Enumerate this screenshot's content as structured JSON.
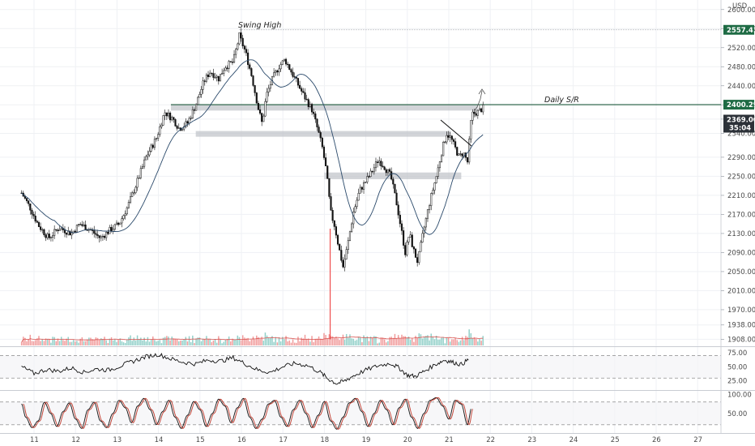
{
  "chart_data": {
    "type": "candlestick",
    "currency": "USD",
    "x_ticks": [
      "11",
      "12",
      "13",
      "14",
      "15",
      "16",
      "17",
      "18",
      "19",
      "20",
      "21",
      "22",
      "23",
      "24",
      "25",
      "26",
      "27"
    ],
    "y_ticks": [
      "2600.00",
      "2560.00",
      "2520.00",
      "2480.00",
      "2440.00",
      "2400.00",
      "2370.00",
      "2340.00",
      "2290.00",
      "2250.00",
      "2210.00",
      "2170.00",
      "2130.00",
      "2090.00",
      "2050.00",
      "2010.00",
      "1970.00",
      "1938.00",
      "1908.00"
    ],
    "y_range": [
      1895,
      2620
    ],
    "annotations": {
      "swing_high": "Swing High",
      "daily_sr": "Daily S/R"
    },
    "price_badges": {
      "swing_high_level": "2557.41",
      "daily_sr_level": "2400.29",
      "last_price": "2369.00",
      "countdown": "35:04"
    },
    "levels": {
      "swing_high": 2557.41,
      "daily_sr": 2400.29,
      "last_price": 2369.0
    },
    "zones": [
      {
        "x_from": 14.3,
        "x_to": 21.7,
        "y_low": 2388,
        "y_high": 2400
      },
      {
        "x_from": 14.9,
        "x_to": 21.05,
        "y_low": 2333,
        "y_high": 2345
      },
      {
        "x_from": 18.0,
        "x_to": 21.3,
        "y_low": 2244,
        "y_high": 2258
      }
    ],
    "price_path": [
      [
        10.7,
        2215
      ],
      [
        10.9,
        2185
      ],
      [
        11.1,
        2148
      ],
      [
        11.35,
        2120
      ],
      [
        11.6,
        2142
      ],
      [
        11.9,
        2130
      ],
      [
        12.1,
        2150
      ],
      [
        12.35,
        2138
      ],
      [
        12.6,
        2120
      ],
      [
        12.8,
        2135
      ],
      [
        13.05,
        2150
      ],
      [
        13.25,
        2185
      ],
      [
        13.45,
        2230
      ],
      [
        13.7,
        2290
      ],
      [
        13.95,
        2330
      ],
      [
        14.15,
        2385
      ],
      [
        14.35,
        2370
      ],
      [
        14.5,
        2350
      ],
      [
        14.7,
        2362
      ],
      [
        14.9,
        2400
      ],
      [
        15.1,
        2450
      ],
      [
        15.25,
        2470
      ],
      [
        15.45,
        2455
      ],
      [
        15.6,
        2480
      ],
      [
        15.8,
        2490
      ],
      [
        15.95,
        2545
      ],
      [
        16.1,
        2510
      ],
      [
        16.25,
        2460
      ],
      [
        16.4,
        2395
      ],
      [
        16.5,
        2360
      ],
      [
        16.6,
        2420
      ],
      [
        16.75,
        2455
      ],
      [
        16.9,
        2480
      ],
      [
        17.05,
        2495
      ],
      [
        17.2,
        2470
      ],
      [
        17.35,
        2445
      ],
      [
        17.5,
        2420
      ],
      [
        17.7,
        2390
      ],
      [
        17.85,
        2345
      ],
      [
        17.95,
        2310
      ],
      [
        18.05,
        2260
      ],
      [
        18.15,
        2175
      ],
      [
        18.25,
        2145
      ],
      [
        18.35,
        2100
      ],
      [
        18.45,
        2060
      ],
      [
        18.55,
        2100
      ],
      [
        18.7,
        2175
      ],
      [
        18.85,
        2220
      ],
      [
        19.0,
        2240
      ],
      [
        19.15,
        2260
      ],
      [
        19.3,
        2285
      ],
      [
        19.45,
        2270
      ],
      [
        19.6,
        2250
      ],
      [
        19.75,
        2190
      ],
      [
        19.85,
        2140
      ],
      [
        19.95,
        2090
      ],
      [
        20.05,
        2130
      ],
      [
        20.15,
        2095
      ],
      [
        20.25,
        2070
      ],
      [
        20.4,
        2140
      ],
      [
        20.55,
        2200
      ],
      [
        20.7,
        2250
      ],
      [
        20.85,
        2310
      ],
      [
        20.95,
        2340
      ],
      [
        21.05,
        2330
      ],
      [
        21.15,
        2310
      ],
      [
        21.25,
        2290
      ],
      [
        21.35,
        2300
      ],
      [
        21.45,
        2280
      ],
      [
        21.55,
        2380
      ],
      [
        21.7,
        2385
      ],
      [
        21.85,
        2395
      ]
    ],
    "spike_wick": {
      "x": 18.14,
      "low": 1908,
      "high": 2140
    },
    "rsi_panel": {
      "y_ticks": [
        "75.00",
        "50.00",
        "25.00"
      ],
      "y_range": [
        10,
        85
      ],
      "upper_band": 70,
      "lower_band": 30,
      "values": [
        [
          10.7,
          50
        ],
        [
          11.0,
          38
        ],
        [
          11.3,
          45
        ],
        [
          11.6,
          42
        ],
        [
          11.9,
          48
        ],
        [
          12.2,
          40
        ],
        [
          12.5,
          46
        ],
        [
          12.8,
          44
        ],
        [
          13.1,
          52
        ],
        [
          13.4,
          60
        ],
        [
          13.7,
          68
        ],
        [
          14.0,
          72
        ],
        [
          14.3,
          64
        ],
        [
          14.6,
          58
        ],
        [
          14.9,
          55
        ],
        [
          15.2,
          62
        ],
        [
          15.5,
          60
        ],
        [
          15.8,
          66
        ],
        [
          16.1,
          55
        ],
        [
          16.4,
          44
        ],
        [
          16.7,
          40
        ],
        [
          17.0,
          50
        ],
        [
          17.3,
          56
        ],
        [
          17.6,
          52
        ],
        [
          17.9,
          40
        ],
        [
          18.1,
          28
        ],
        [
          18.3,
          20
        ],
        [
          18.5,
          25
        ],
        [
          18.7,
          34
        ],
        [
          19.0,
          44
        ],
        [
          19.3,
          52
        ],
        [
          19.6,
          56
        ],
        [
          19.8,
          48
        ],
        [
          20.0,
          35
        ],
        [
          20.2,
          33
        ],
        [
          20.4,
          42
        ],
        [
          20.7,
          55
        ],
        [
          20.9,
          62
        ],
        [
          21.1,
          58
        ],
        [
          21.3,
          54
        ],
        [
          21.5,
          64
        ]
      ]
    },
    "stoch_panel": {
      "y_ticks": [
        "100.00",
        "50.00"
      ],
      "y_range": [
        0,
        110
      ],
      "upper_band": 80,
      "lower_band": 20,
      "values": [
        [
          10.7,
          75
        ],
        [
          10.8,
          40
        ],
        [
          10.95,
          12
        ],
        [
          11.1,
          30
        ],
        [
          11.25,
          80
        ],
        [
          11.4,
          50
        ],
        [
          11.55,
          15
        ],
        [
          11.7,
          55
        ],
        [
          11.85,
          78
        ],
        [
          12.0,
          35
        ],
        [
          12.15,
          10
        ],
        [
          12.3,
          60
        ],
        [
          12.45,
          80
        ],
        [
          12.6,
          30
        ],
        [
          12.75,
          12
        ],
        [
          12.9,
          50
        ],
        [
          13.05,
          85
        ],
        [
          13.2,
          65
        ],
        [
          13.35,
          25
        ],
        [
          13.5,
          70
        ],
        [
          13.65,
          90
        ],
        [
          13.8,
          60
        ],
        [
          13.95,
          20
        ],
        [
          14.1,
          55
        ],
        [
          14.25,
          85
        ],
        [
          14.4,
          40
        ],
        [
          14.55,
          10
        ],
        [
          14.7,
          45
        ],
        [
          14.85,
          82
        ],
        [
          15.0,
          60
        ],
        [
          15.15,
          15
        ],
        [
          15.3,
          50
        ],
        [
          15.45,
          88
        ],
        [
          15.6,
          70
        ],
        [
          15.75,
          25
        ],
        [
          15.9,
          65
        ],
        [
          16.05,
          90
        ],
        [
          16.2,
          40
        ],
        [
          16.35,
          10
        ],
        [
          16.5,
          35
        ],
        [
          16.65,
          75
        ],
        [
          16.8,
          85
        ],
        [
          16.95,
          40
        ],
        [
          17.1,
          15
        ],
        [
          17.25,
          60
        ],
        [
          17.4,
          85
        ],
        [
          17.55,
          50
        ],
        [
          17.7,
          12
        ],
        [
          17.85,
          45
        ],
        [
          18.0,
          82
        ],
        [
          18.15,
          30
        ],
        [
          18.3,
          8
        ],
        [
          18.45,
          40
        ],
        [
          18.6,
          78
        ],
        [
          18.75,
          90
        ],
        [
          18.9,
          55
        ],
        [
          19.05,
          15
        ],
        [
          19.2,
          50
        ],
        [
          19.35,
          85
        ],
        [
          19.5,
          60
        ],
        [
          19.65,
          20
        ],
        [
          19.8,
          65
        ],
        [
          19.95,
          88
        ],
        [
          20.1,
          40
        ],
        [
          20.25,
          10
        ],
        [
          20.4,
          50
        ],
        [
          20.55,
          85
        ],
        [
          20.7,
          92
        ],
        [
          20.85,
          70
        ],
        [
          21.0,
          35
        ],
        [
          21.15,
          85
        ],
        [
          21.3,
          75
        ],
        [
          21.45,
          20
        ],
        [
          21.55,
          65
        ]
      ]
    }
  }
}
